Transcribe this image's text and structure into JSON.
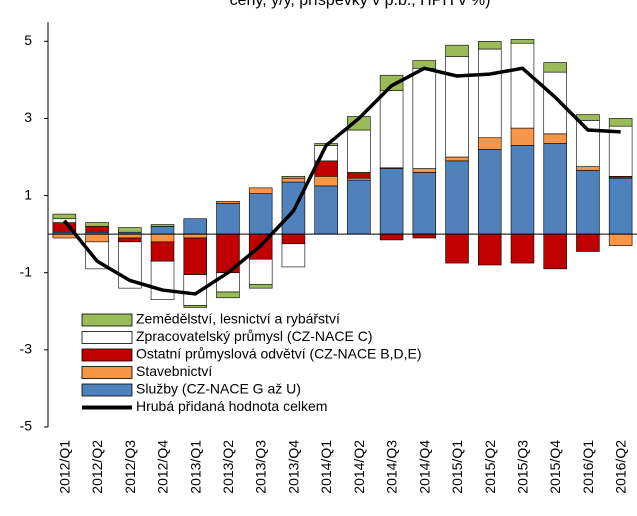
{
  "chart_data": {
    "type": "bar",
    "stacked": true,
    "title": "ceny, y/y, příspěvky v p.b., HPH v %)",
    "categories": [
      "2012/Q1",
      "2012/Q2",
      "2012/Q3",
      "2012/Q4",
      "2013/Q1",
      "2013/Q2",
      "2013/Q3",
      "2013/Q4",
      "2014/Q1",
      "2014/Q2",
      "2014/Q3",
      "2014/Q4",
      "2015/Q1",
      "2015/Q2",
      "2015/Q3",
      "2015/Q4",
      "2016/Q1",
      "2016/Q2"
    ],
    "series": [
      {
        "name": "Zemědělství, lesnictví a rybářství",
        "color": "#9bbb59",
        "values": [
          0.12,
          0.1,
          0.12,
          0.05,
          -0.05,
          -0.15,
          -0.1,
          0.05,
          0.05,
          0.35,
          0.4,
          0.2,
          0.3,
          0.2,
          0.1,
          0.25,
          0.15,
          0.2
        ]
      },
      {
        "name": "Zpracovatelský průmysl (CZ-NACE C)",
        "color": "#ffffff",
        "values": [
          0.1,
          -0.7,
          -1.2,
          -1.0,
          -0.8,
          -0.5,
          -0.65,
          -0.6,
          0.4,
          1.1,
          2.0,
          2.6,
          2.6,
          2.3,
          2.2,
          1.6,
          1.2,
          1.3
        ]
      },
      {
        "name": "Ostatní průmyslová odvětví (CZ-NACE B,D,E)",
        "color": "#c00000",
        "values": [
          0.25,
          0.15,
          -0.1,
          -0.5,
          -0.95,
          -1.0,
          -0.65,
          -0.25,
          0.4,
          0.15,
          -0.15,
          -0.1,
          -0.75,
          -0.8,
          -0.75,
          -0.9,
          -0.45,
          0.05
        ]
      },
      {
        "name": "Stavebnictví",
        "color": "#f79646",
        "values": [
          -0.1,
          -0.2,
          -0.1,
          -0.2,
          -0.1,
          0.05,
          0.15,
          0.1,
          0.25,
          0.05,
          0.02,
          0.1,
          0.1,
          0.3,
          0.45,
          0.25,
          0.1,
          -0.3
        ]
      },
      {
        "name": "Služby (CZ-NACE G až U)",
        "color": "#4f81bd",
        "values": [
          0.05,
          0.05,
          0.05,
          0.2,
          0.4,
          0.8,
          1.05,
          1.35,
          1.25,
          1.4,
          1.7,
          1.6,
          1.9,
          2.2,
          2.3,
          2.35,
          1.65,
          1.45
        ]
      },
      {
        "name": "Hrubá přidaná hodnota celkem",
        "color": "#000000",
        "type": "line",
        "values": [
          0.35,
          -0.7,
          -1.2,
          -1.45,
          -1.55,
          -1.0,
          -0.3,
          0.6,
          2.3,
          3.0,
          3.85,
          4.3,
          4.1,
          4.15,
          4.3,
          3.55,
          2.7,
          2.65
        ]
      }
    ],
    "ylim": [
      -5,
      5.5
    ],
    "yticks": [
      -5,
      -3,
      -1,
      1,
      3,
      5
    ]
  }
}
